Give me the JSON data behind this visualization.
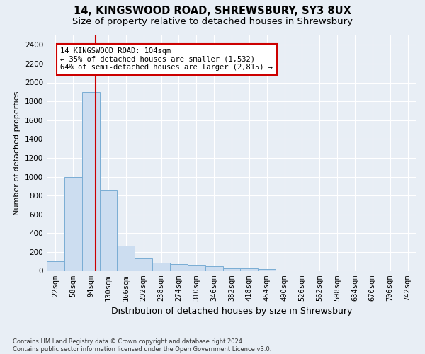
{
  "title1": "14, KINGSWOOD ROAD, SHREWSBURY, SY3 8UX",
  "title2": "Size of property relative to detached houses in Shrewsbury",
  "xlabel": "Distribution of detached houses by size in Shrewsbury",
  "ylabel": "Number of detached properties",
  "footnote": "Contains HM Land Registry data © Crown copyright and database right 2024.\nContains public sector information licensed under the Open Government Licence v3.0.",
  "bins": [
    "22sqm",
    "58sqm",
    "94sqm",
    "130sqm",
    "166sqm",
    "202sqm",
    "238sqm",
    "274sqm",
    "310sqm",
    "346sqm",
    "382sqm",
    "418sqm",
    "454sqm",
    "490sqm",
    "526sqm",
    "562sqm",
    "598sqm",
    "634sqm",
    "670sqm",
    "706sqm",
    "742sqm"
  ],
  "values": [
    100,
    1000,
    1900,
    850,
    270,
    130,
    90,
    70,
    60,
    50,
    30,
    30,
    20,
    0,
    0,
    0,
    0,
    0,
    0,
    0,
    0
  ],
  "bar_color": "#ccddf0",
  "bar_edge_color": "#7aadd4",
  "vline_color": "#cc0000",
  "annotation_text": "14 KINGSWOOD ROAD: 104sqm\n← 35% of detached houses are smaller (1,532)\n64% of semi-detached houses are larger (2,815) →",
  "annotation_box_color": "white",
  "annotation_box_edge_color": "#cc0000",
  "ylim": [
    0,
    2500
  ],
  "yticks": [
    0,
    200,
    400,
    600,
    800,
    1000,
    1200,
    1400,
    1600,
    1800,
    2000,
    2200,
    2400
  ],
  "bg_color": "#e8eef5",
  "plot_bg_color": "#e8eef5",
  "grid_color": "white",
  "title_fontsize": 10.5,
  "subtitle_fontsize": 9.5,
  "ylabel_fontsize": 8,
  "xlabel_fontsize": 9,
  "tick_fontsize": 7.5,
  "annot_fontsize": 7.5
}
